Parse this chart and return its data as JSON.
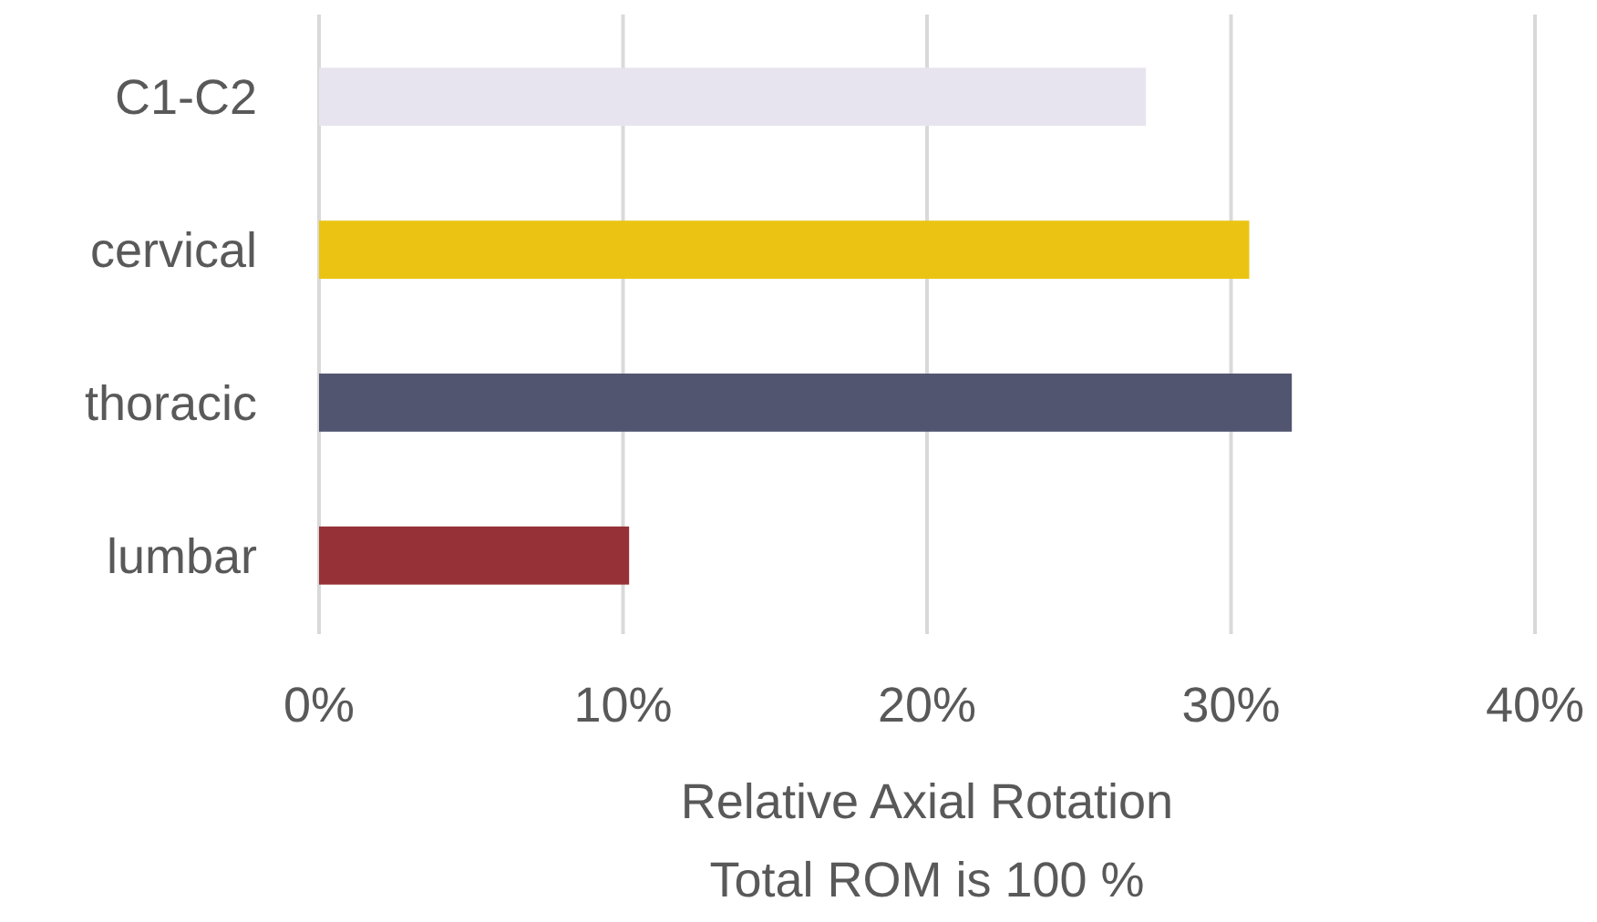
{
  "chart_data": {
    "type": "bar",
    "orientation": "horizontal",
    "categories": [
      "C1-C2",
      "cervical",
      "thoracic",
      "lumbar"
    ],
    "values": [
      27.2,
      30.6,
      32.0,
      10.2
    ],
    "colors": [
      "#e8e4ef",
      "#ebc413",
      "#52556f",
      "#963237"
    ],
    "xlim": [
      0,
      40
    ],
    "xticks": [
      {
        "value": 0,
        "label": "0%"
      },
      {
        "value": 10,
        "label": "10%"
      },
      {
        "value": 20,
        "label": "20%"
      },
      {
        "value": 30,
        "label": "30%"
      },
      {
        "value": 40,
        "label": "40%"
      }
    ],
    "xlabel": "Relative Axial Rotation\nTotal ROM is 100 %",
    "grid": "x"
  }
}
